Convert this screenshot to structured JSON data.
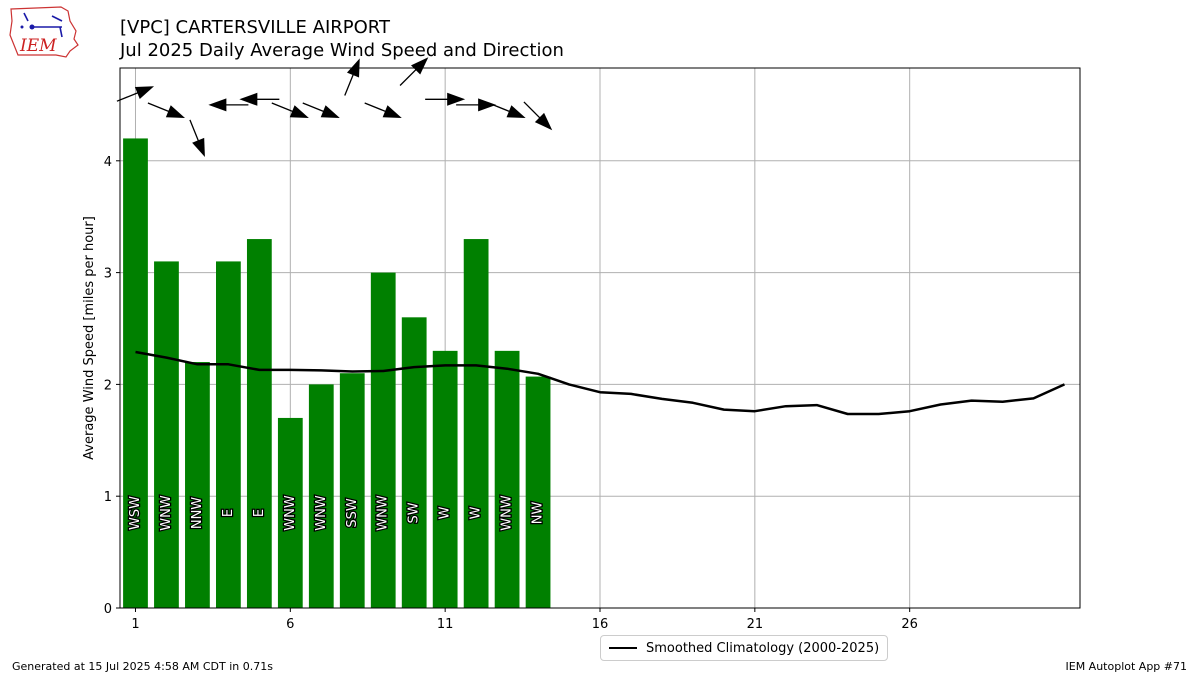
{
  "header": {
    "title_line1": "[VPC] CARTERSVILLE AIRPORT",
    "title_line2": "Jul 2025 Daily Average Wind Speed and Direction",
    "logo_text": "IEM"
  },
  "footer": {
    "generated": "Generated at 15 Jul 2025 4:58 AM CDT in 0.71s",
    "app": "IEM Autoplot App #71"
  },
  "colors": {
    "bar": "#008000",
    "climatology": "#000000",
    "grid": "#b0b0b0",
    "arrow": "#000000"
  },
  "chart_data": {
    "type": "bar",
    "ylabel": "Average Wind Speed [miles per hour]",
    "xlabel": "",
    "xlim": [
      0.5,
      31.5
    ],
    "ylim": [
      0,
      4.83
    ],
    "grid": true,
    "legend_position": "bottom-center",
    "x_ticks": [
      1,
      6,
      11,
      16,
      21,
      26
    ],
    "y_ticks": [
      0,
      1,
      2,
      3,
      4
    ],
    "days": [
      1,
      2,
      3,
      4,
      5,
      6,
      7,
      8,
      9,
      10,
      11,
      12,
      13,
      14
    ],
    "values": [
      4.2,
      3.1,
      2.2,
      3.1,
      3.3,
      1.7,
      2.0,
      2.1,
      3.0,
      2.6,
      2.3,
      3.3,
      2.3,
      2.07
    ],
    "direction_labels": [
      "WSW",
      "WNW",
      "NNW",
      "E",
      "E",
      "WNW",
      "WNW",
      "SSW",
      "WNW",
      "SW",
      "W",
      "W",
      "WNW",
      "NW"
    ],
    "direction_degrees": [
      248,
      292,
      338,
      90,
      90,
      292,
      292,
      202,
      292,
      225,
      270,
      270,
      292,
      315
    ],
    "arrow_heights": [
      4.6,
      4.45,
      4.2,
      4.5,
      4.55,
      4.45,
      4.45,
      4.75,
      4.45,
      4.8,
      4.55,
      4.5,
      4.45,
      4.4
    ],
    "series": [
      {
        "name": "Smoothed Climatology (2000-2025)",
        "type": "line",
        "x": [
          1,
          2,
          3,
          4,
          5,
          6,
          7,
          8,
          9,
          10,
          11,
          12,
          13,
          14,
          15,
          16,
          17,
          18,
          19,
          20,
          21,
          22,
          23,
          24,
          25,
          26,
          27,
          28,
          29,
          30,
          31
        ],
        "values": [
          2.29,
          2.24,
          2.18,
          2.18,
          2.13,
          2.13,
          2.125,
          2.115,
          2.12,
          2.155,
          2.17,
          2.17,
          2.14,
          2.095,
          2.0,
          1.93,
          1.915,
          1.87,
          1.835,
          1.775,
          1.76,
          1.805,
          1.815,
          1.735,
          1.735,
          1.76,
          1.82,
          1.855,
          1.845,
          1.875,
          2.0
        ]
      }
    ]
  }
}
